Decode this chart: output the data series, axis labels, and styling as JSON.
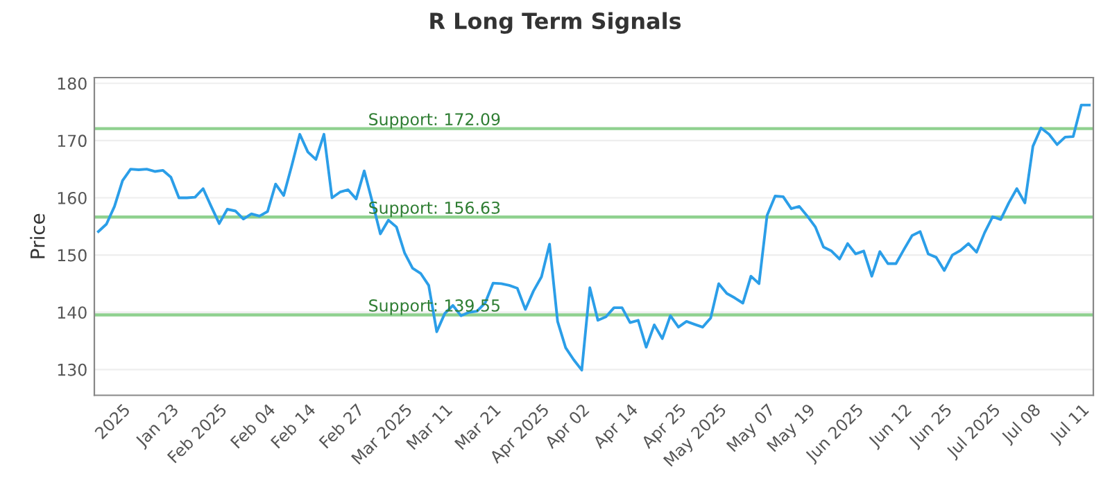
{
  "chart_data": {
    "type": "line",
    "title": "R Long Term Signals",
    "ylabel": "Price",
    "categories": [
      null,
      null,
      null,
      "2025",
      null,
      null,
      null,
      null,
      null,
      "Jan 23",
      null,
      null,
      null,
      null,
      null,
      "Feb 2025",
      null,
      null,
      null,
      null,
      null,
      "Feb 04",
      null,
      null,
      null,
      null,
      "Feb 14",
      null,
      null,
      null,
      null,
      null,
      "Feb 27",
      null,
      null,
      null,
      null,
      null,
      "Mar 2025",
      null,
      null,
      null,
      null,
      "Mar 11",
      null,
      null,
      null,
      null,
      null,
      "Mar 21",
      null,
      null,
      null,
      null,
      null,
      "Apr 2025",
      null,
      null,
      null,
      null,
      "Apr 02",
      null,
      null,
      null,
      null,
      null,
      "Apr 14",
      null,
      null,
      null,
      null,
      null,
      "Apr 25",
      null,
      null,
      null,
      null,
      "May 2025",
      null,
      null,
      null,
      null,
      null,
      "May 07",
      null,
      null,
      null,
      null,
      "May 19",
      null,
      null,
      null,
      null,
      null,
      "Jun 2025",
      null,
      null,
      null,
      null,
      null,
      "Jun 12",
      null,
      null,
      null,
      null,
      "Jun 25",
      null,
      null,
      null,
      null,
      null,
      "Jul 2025",
      null,
      null,
      null,
      null,
      "Jul 08",
      null,
      null,
      null,
      null,
      null,
      "Jul 11",
      null
    ],
    "series": [
      {
        "color": "#2b9ee8",
        "values": [
          154.1,
          155.4,
          158.5,
          163,
          165,
          164.9,
          165,
          164.6,
          164.8,
          163.6,
          160,
          160,
          160.1,
          161.6,
          158.5,
          155.5,
          158,
          157.7,
          156.3,
          157.2,
          156.8,
          157.6,
          162.4,
          160.4,
          165.6,
          171.1,
          168,
          166.7,
          171.1,
          160,
          161,
          161.4,
          159.8,
          164.7,
          159.3,
          153.7,
          156.1,
          154.9,
          150.4,
          147.7,
          146.8,
          144.7,
          136.6,
          139.8,
          141.2,
          139.4,
          140,
          140.2,
          141.6,
          145.1,
          145,
          144.7,
          144.2,
          140.5,
          143.7,
          146.2,
          151.9,
          138.4,
          133.8,
          131.7,
          129.9,
          144.3,
          138.6,
          139.2,
          140.8,
          140.8,
          138.2,
          138.6,
          133.9,
          137.8,
          135.4,
          139.4,
          137.4,
          138.4,
          137.9,
          137.4,
          139,
          145,
          143.3,
          142.5,
          141.6,
          146.3,
          145,
          156.9,
          160.3,
          160.2,
          158.1,
          158.5,
          156.8,
          154.9,
          151.4,
          150.7,
          149.3,
          152,
          150.2,
          150.7,
          146.3,
          150.6,
          148.5,
          148.5,
          151,
          153.4,
          154.1,
          150.2,
          149.6,
          147.3,
          150,
          150.8,
          152,
          150.5,
          153.9,
          156.7,
          156.2,
          159.1,
          161.6,
          159.1,
          169,
          172.2,
          171.1,
          169.3,
          170.6,
          170.7,
          176.2,
          176.2
        ]
      }
    ],
    "ylim": [
      125.5,
      181
    ],
    "yticks": [
      130,
      140,
      150,
      160,
      170,
      180
    ],
    "grid": "y",
    "ref_lines": [
      {
        "axis": "y",
        "value": 172.09,
        "label": "Support: 172.09",
        "color": "#8fd18f"
      },
      {
        "axis": "y",
        "value": 156.63,
        "label": "Support: 156.63",
        "color": "#8fd18f"
      },
      {
        "axis": "y",
        "value": 139.55,
        "label": "Support: 139.55",
        "color": "#8fd18f"
      }
    ]
  }
}
